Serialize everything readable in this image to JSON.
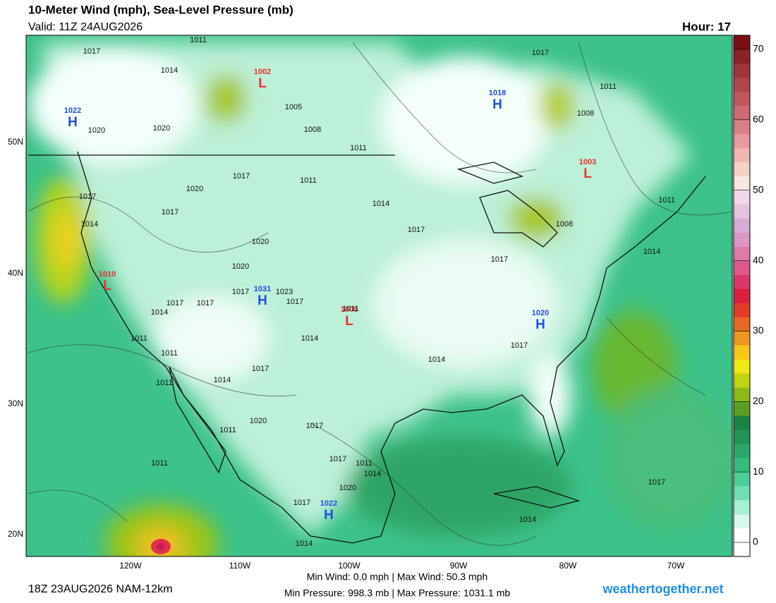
{
  "header": {
    "title": "10-Meter Wind (mph), Sea-Level Pressure (mb)",
    "valid": "Valid: 11Z 24AUG2026",
    "hour": "Hour: 17"
  },
  "map": {
    "lat_ticks": [
      "50N",
      "40N",
      "30N",
      "20N"
    ],
    "lon_ticks": [
      "120W",
      "110W",
      "100W",
      "90W",
      "80W",
      "70W"
    ],
    "centers": [
      {
        "letter": "H",
        "value": "1022",
        "color": "#1f4fe0"
      },
      {
        "letter": "L",
        "value": "1002",
        "color": "#e8302c"
      },
      {
        "letter": "H",
        "value": "1018",
        "color": "#1f4fe0"
      },
      {
        "letter": "L",
        "value": "1003",
        "color": "#e8302c"
      },
      {
        "letter": "L",
        "value": "1010",
        "color": "#e8302c"
      },
      {
        "letter": "H",
        "value": "1031",
        "color": "#1f4fe0"
      },
      {
        "letter": "L",
        "value": "1008",
        "color": "#e8302c"
      },
      {
        "letter": "H",
        "value": "1020",
        "color": "#1f4fe0"
      },
      {
        "letter": "H",
        "value": "1022",
        "color": "#1f4fe0"
      }
    ],
    "isobar_labels": [
      "1011",
      "1017",
      "1014",
      "1020",
      "1020",
      "1005",
      "1008",
      "1011",
      "1017",
      "1011",
      "1008",
      "1017",
      "1011",
      "1020",
      "1017",
      "1017",
      "1014",
      "1014",
      "1017",
      "1011",
      "1008",
      "1014",
      "1020",
      "1020",
      "1017",
      "1017",
      "1023",
      "1017",
      "1017",
      "1017",
      "1014",
      "1011",
      "1014",
      "1011",
      "1011",
      "1017",
      "1014",
      "1017",
      "1011",
      "1014",
      "1020",
      "1017",
      "1011",
      "1017",
      "1011",
      "1014",
      "1011",
      "1020",
      "1017",
      "1014",
      "1017",
      "1014"
    ]
  },
  "colorbar": {
    "range": [
      -2,
      72
    ],
    "ticks": [
      0,
      10,
      20,
      30,
      40,
      50,
      60,
      70
    ],
    "colors": [
      "#ffffff",
      "#ffffff",
      "#d9f7ee",
      "#a6f0d4",
      "#6fe0b5",
      "#4bcf98",
      "#36bb7f",
      "#2aa86a",
      "#1f9556",
      "#1a8445",
      "#5aa020",
      "#8dbb16",
      "#c2d40f",
      "#f0e814",
      "#f7c519",
      "#ef9620",
      "#e86a22",
      "#e03c2a",
      "#d81f3b",
      "#d8386a",
      "#dc5a8c",
      "#e07aaa",
      "#de96c4",
      "#d8aad6",
      "#e4c2e0",
      "#f0d6e8",
      "#f8e6e0",
      "#f6d2c4",
      "#f0b8b0",
      "#e89aa0",
      "#dc8088",
      "#d06a74",
      "#c2565e",
      "#b2454c",
      "#a0343a",
      "#8c2228",
      "#7a1014"
    ]
  },
  "footer": {
    "run": "18Z 23AUG2026 NAM-12km",
    "wind_stats": "Min Wind:  0.0 mph | Max Wind: 50.3 mph",
    "pressure_stats": "Min Pressure: 998.3 mb | Max Pressure: 1031.1 mb",
    "site": "weathertogether.net"
  }
}
